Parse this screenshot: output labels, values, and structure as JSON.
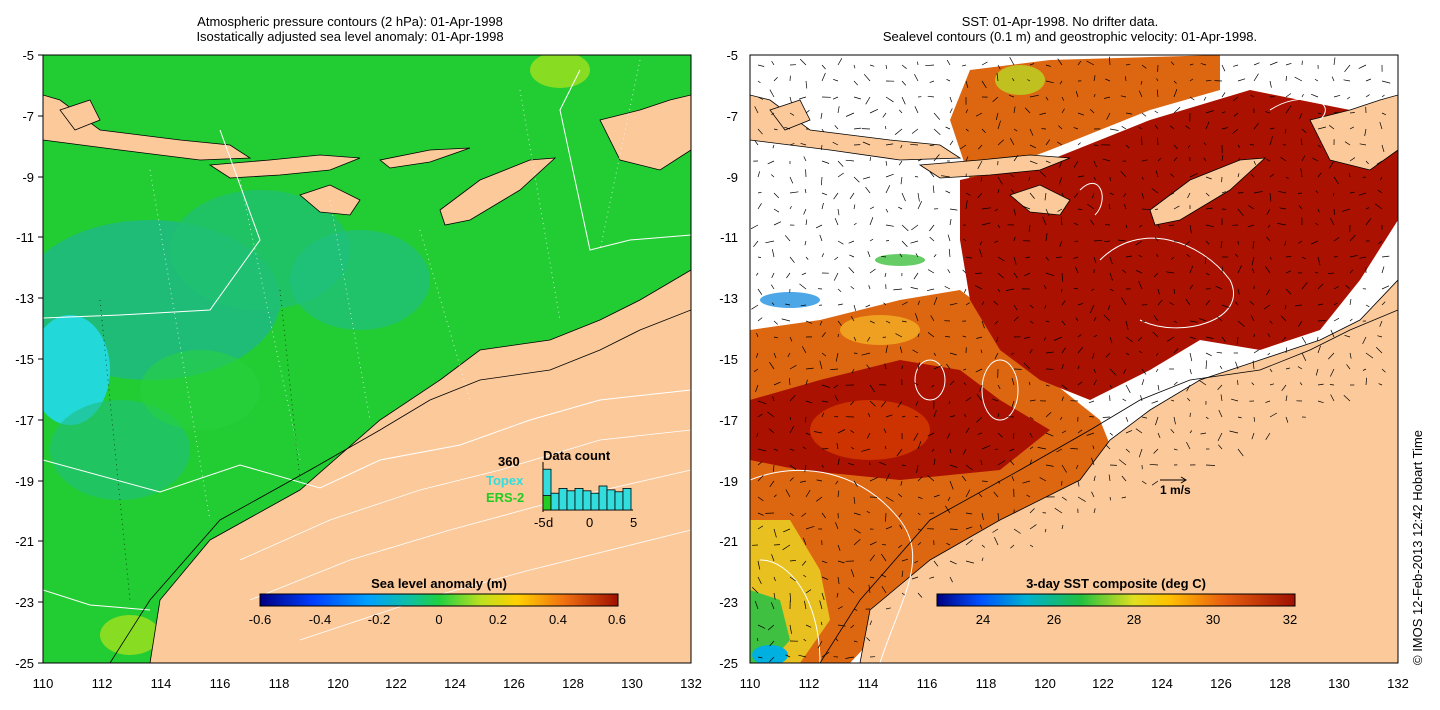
{
  "left_panel": {
    "title_line1": "Atmospheric pressure contours (2 hPa): 01-Apr-1998",
    "title_line2": "Isostatically adjusted sea level anomaly: 01-Apr-1998",
    "y_ticks": [
      "-5",
      "-7",
      "-9",
      "-11",
      "-13",
      "-15",
      "-17",
      "-19",
      "-21",
      "-23",
      "-25"
    ],
    "x_ticks": [
      "110",
      "112",
      "114",
      "116",
      "118",
      "120",
      "122",
      "124",
      "126",
      "128",
      "130",
      "132"
    ],
    "colorbar": {
      "title": "Sea level anomaly (m)",
      "ticks": [
        "-0.6",
        "-0.4",
        "-0.2",
        "0",
        "0.2",
        "0.4",
        "0.6"
      ]
    },
    "inset": {
      "title": "Data count",
      "count": "360",
      "topex_label": "Topex",
      "ers_label": "ERS-2",
      "axis_ticks": [
        "-5",
        "0",
        "5"
      ],
      "d_label": "d",
      "bars_fraction": [
        0.85,
        0.35,
        0.45,
        0.4,
        0.45,
        0.4,
        0.35,
        0.5,
        0.42,
        0.38,
        0.45
      ],
      "ers_fraction": 0.3,
      "topex_color": "#33dddd",
      "ers_color": "#22cc22"
    },
    "ocean_color": "#22cc33",
    "land_color": "#fbc99a"
  },
  "right_panel": {
    "title_line1": "SST: 01-Apr-1998. No drifter data.",
    "title_line2": "Sealevel contours (0.1 m) and geostrophic velocity: 01-Apr-1998.",
    "y_ticks": [
      "-5",
      "-7",
      "-9",
      "-11",
      "-13",
      "-15",
      "-17",
      "-19",
      "-21",
      "-23",
      "-25"
    ],
    "x_ticks": [
      "110",
      "112",
      "114",
      "116",
      "118",
      "120",
      "122",
      "124",
      "126",
      "128",
      "130",
      "132"
    ],
    "colorbar": {
      "title": "3-day SST composite (deg C)",
      "ticks": [
        "24",
        "26",
        "28",
        "30",
        "32"
      ]
    },
    "velocity_label": "1 m/s",
    "sst_hot_color": "#aa1100",
    "sst_warm_color": "#dd6611"
  },
  "copyright": "© IMOS 12-Feb-2013 12:42 Hobart Time"
}
